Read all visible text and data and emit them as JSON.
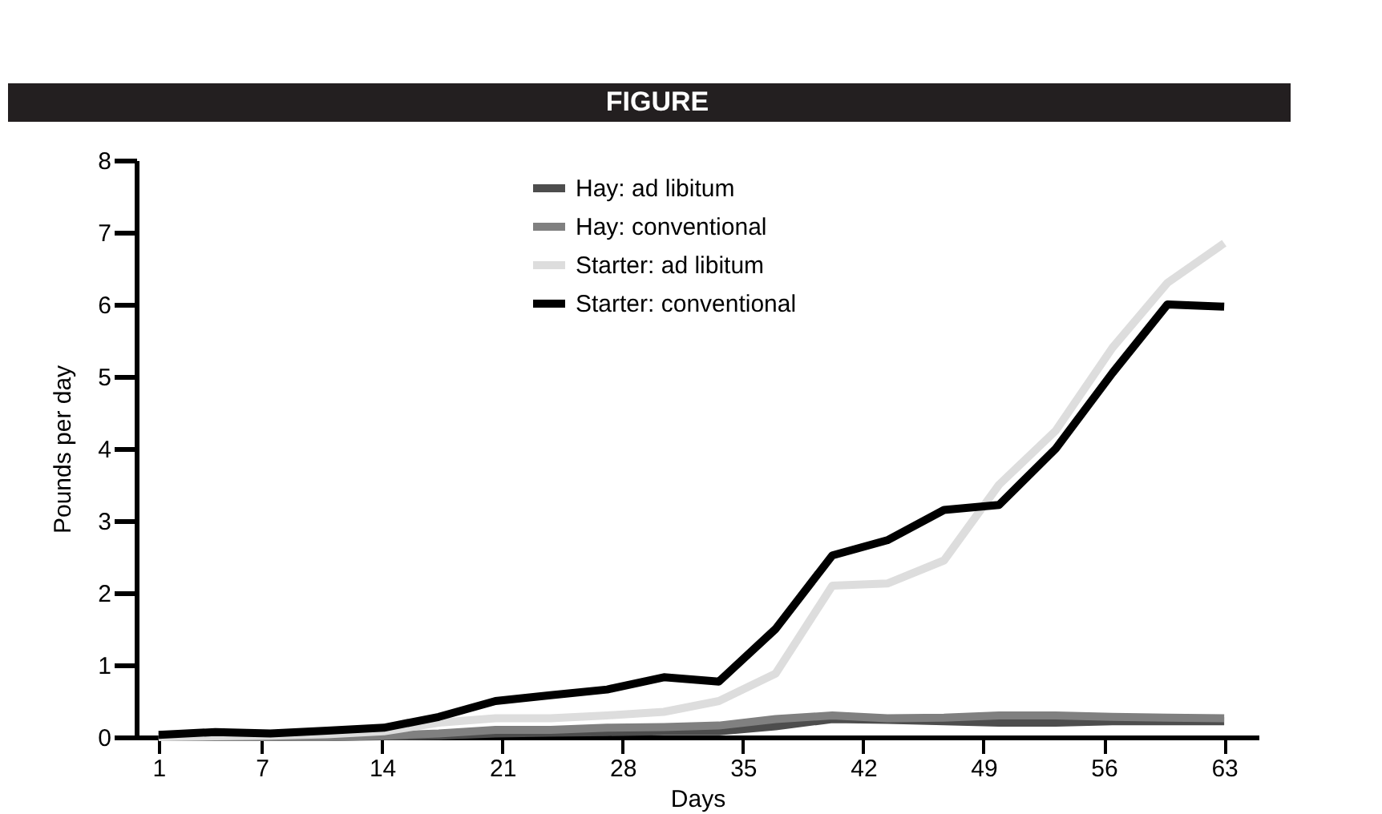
{
  "chart_data": {
    "type": "line",
    "title": "FIGURE",
    "xlabel": "Days",
    "ylabel": "Pounds per day",
    "x": [
      1,
      4.3,
      7.5,
      10.8,
      14.1,
      17.3,
      20.6,
      23.8,
      27.1,
      30.4,
      33.6,
      36.9,
      40.2,
      43.4,
      46.7,
      49.9,
      53.2,
      56.5,
      59.7,
      63
    ],
    "series": [
      {
        "name": "Hay: ad libitum",
        "color": "#4d4d4d",
        "values": [
          0,
          0,
          0,
          0,
          0.01,
          0.02,
          0.05,
          0.06,
          0.07,
          0.08,
          0.08,
          0.15,
          0.25,
          0.24,
          0.22,
          0.2,
          0.2,
          0.22,
          0.22,
          0.22
        ]
      },
      {
        "name": "Hay: conventional",
        "color": "#808080",
        "values": [
          0,
          0,
          0,
          0,
          0.02,
          0.05,
          0.1,
          0.1,
          0.13,
          0.14,
          0.16,
          0.25,
          0.3,
          0.26,
          0.27,
          0.3,
          0.3,
          0.28,
          0.27,
          0.26
        ]
      },
      {
        "name": "Starter: ad libitum",
        "color": "#dddddd",
        "values": [
          0,
          0.01,
          0.02,
          0.04,
          0.08,
          0.2,
          0.26,
          0.26,
          0.3,
          0.35,
          0.5,
          0.88,
          2.1,
          2.13,
          2.45,
          3.5,
          4.25,
          5.4,
          6.3,
          6.85
        ]
      },
      {
        "name": "Starter: conventional",
        "color": "#000000",
        "values": [
          0.03,
          0.07,
          0.05,
          0.09,
          0.13,
          0.28,
          0.5,
          0.58,
          0.66,
          0.83,
          0.77,
          1.5,
          2.52,
          2.73,
          3.15,
          3.22,
          4.0,
          5.05,
          6.0,
          5.97
        ]
      }
    ],
    "xlim": [
      -0.3,
      65
    ],
    "xticks": [
      1,
      7,
      14,
      21,
      28,
      35,
      42,
      49,
      56,
      63
    ],
    "ylim": [
      0,
      8
    ],
    "yticks": [
      0,
      1,
      2,
      3,
      4,
      5,
      6,
      7,
      8
    ],
    "grid": false,
    "legend": "top",
    "marker": "none",
    "line_style": "solid"
  }
}
